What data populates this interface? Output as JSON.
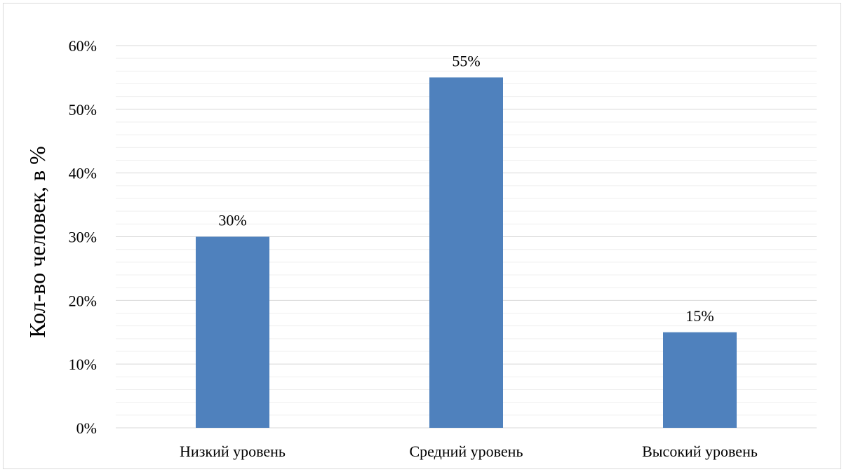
{
  "chart_data": {
    "type": "bar",
    "title": "",
    "xlabel": "",
    "ylabel": "Кол-во человек, в %",
    "categories": [
      "Низкий уровень",
      "Средний уровень",
      "Высокий уровень"
    ],
    "values": [
      30,
      55,
      15
    ],
    "data_labels": [
      "30%",
      "55%",
      "15%"
    ],
    "ylim": [
      0,
      60
    ],
    "y_ticks": [
      0,
      10,
      20,
      30,
      40,
      50,
      60
    ],
    "y_tick_labels": [
      "0%",
      "10%",
      "20%",
      "30%",
      "40%",
      "50%",
      "60%"
    ],
    "minor_gridlines": true,
    "grid": true,
    "legend": "none",
    "bar_color": "#4f81bd",
    "major_grid_color": "#d9d9d9",
    "minor_grid_color": "#efefef"
  }
}
